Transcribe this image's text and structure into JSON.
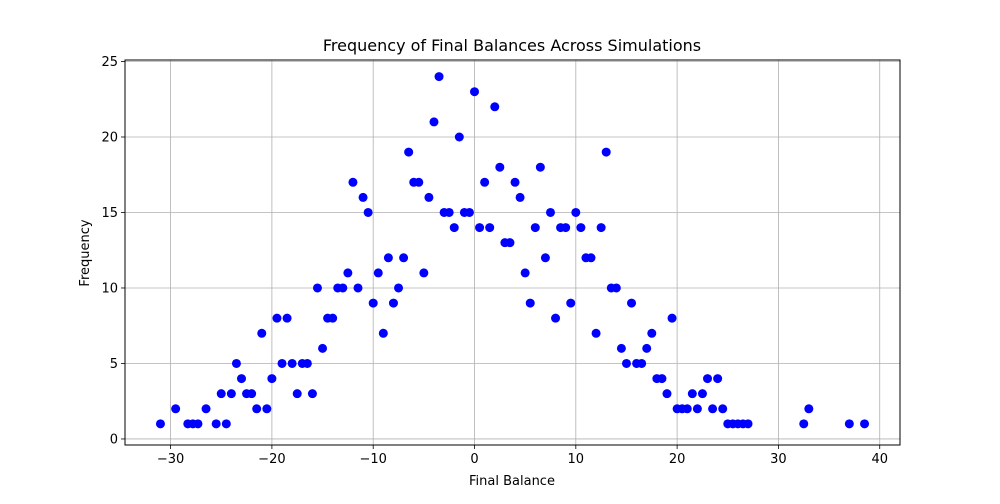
{
  "chart_data": {
    "type": "scatter",
    "title": "Frequency of Final Balances Across Simulations",
    "xlabel": "Final Balance",
    "ylabel": "Frequency",
    "xlim": [
      -34.5,
      42
    ],
    "ylim": [
      -0.4,
      25.1
    ],
    "xticks": [
      -30,
      -20,
      -10,
      0,
      10,
      20,
      30,
      40
    ],
    "yticks": [
      0,
      5,
      10,
      15,
      20,
      25
    ],
    "grid": true,
    "marker_color": "#0000ff",
    "series": [
      {
        "x": [
          -31,
          -29.5,
          -28.3,
          -27.8,
          -27.3,
          -26.5,
          -25.5,
          -25,
          -24.5,
          -24,
          -23.5,
          -23,
          -22.5,
          -22,
          -21.5,
          -21,
          -20.5,
          -20,
          -19.5,
          -19,
          -18.5,
          -18,
          -17.5,
          -17,
          -16.5,
          -16,
          -15.5,
          -15,
          -14.5,
          -14,
          -13.5,
          -13,
          -12.5,
          -12,
          -11.5,
          -11,
          -10.5,
          -10,
          -9.5,
          -9,
          -8.5,
          -8,
          -7.5,
          -7,
          -6.5,
          -6,
          -5.5,
          -5,
          -4.5,
          -4,
          -3.5,
          -3,
          -2.5,
          -2,
          -1.5,
          -1,
          -0.5,
          0,
          0.5,
          1,
          1.5,
          2,
          2.5,
          3,
          3.5,
          4,
          4.5,
          5,
          5.5,
          6,
          6.5,
          7,
          7.5,
          8,
          8.5,
          9,
          9.5,
          10,
          10.5,
          11,
          11.5,
          12,
          12.5,
          13,
          13.5,
          14,
          14.5,
          15,
          15.5,
          16,
          16.5,
          17,
          17.5,
          18,
          18.5,
          19,
          19.5,
          20,
          20.5,
          21,
          21.5,
          22,
          22.5,
          23,
          23.5,
          24,
          24.5,
          25,
          25.5,
          26,
          26.5,
          27,
          32.5,
          33,
          37,
          38.5
        ],
        "y": [
          1,
          2,
          1,
          1,
          1,
          2,
          1,
          3,
          1,
          3,
          5,
          4,
          3,
          3,
          2,
          7,
          2,
          4,
          8,
          5,
          8,
          5,
          3,
          5,
          5,
          3,
          10,
          6,
          8,
          8,
          10,
          10,
          11,
          17,
          10,
          16,
          15,
          9,
          11,
          7,
          12,
          9,
          10,
          12,
          19,
          17,
          17,
          11,
          16,
          21,
          24,
          15,
          15,
          14,
          20,
          15,
          15,
          23,
          14,
          17,
          14,
          22,
          18,
          13,
          13,
          17,
          16,
          11,
          9,
          14,
          18,
          12,
          15,
          8,
          14,
          14,
          9,
          15,
          14,
          12,
          12,
          7,
          14,
          19,
          10,
          10,
          6,
          5,
          9,
          5,
          5,
          6,
          7,
          4,
          4,
          3,
          8,
          2,
          2,
          2,
          3,
          2,
          3,
          4,
          2,
          4,
          2,
          1,
          1,
          1,
          1,
          1,
          1,
          2,
          1,
          1
        ]
      }
    ]
  }
}
